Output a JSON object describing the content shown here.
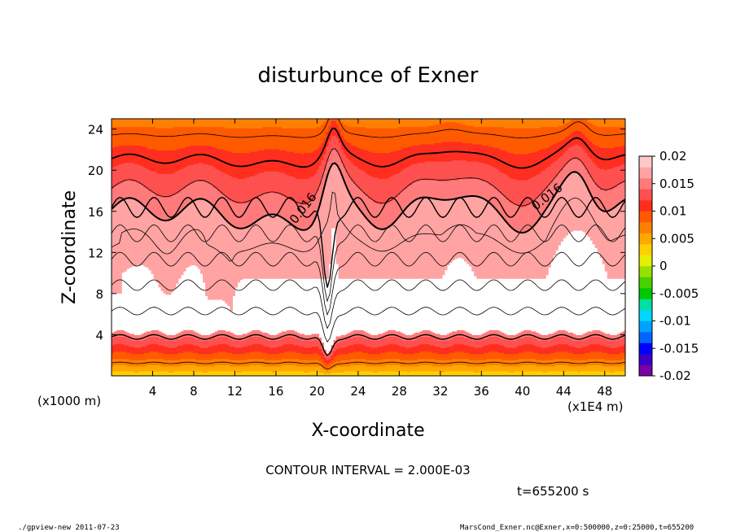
{
  "chart_data": {
    "type": "heatmap",
    "title": "disturbunce of Exner",
    "xlabel": "X-coordinate",
    "ylabel": "Z-coordinate",
    "x_unit_left": "(x1000 m)",
    "x_unit_right": "(x1E4 m)",
    "x_ticks": [
      "4",
      "8",
      "12",
      "16",
      "20",
      "24",
      "28",
      "32",
      "36",
      "40",
      "44",
      "48"
    ],
    "y_ticks": [
      "4",
      "8",
      "12",
      "16",
      "20",
      "24"
    ],
    "xlim": [
      0,
      50
    ],
    "ylim": [
      0,
      25
    ],
    "contour_interval_text": "CONTOUR INTERVAL = 2.000E-03",
    "time_text": "t=655200 s",
    "contour_labels": [
      "0.016",
      "0.016"
    ],
    "colorbar": {
      "range": [
        -0.02,
        0.02
      ],
      "ticks": [
        "0.02",
        "0.015",
        "0.01",
        "0.005",
        "0",
        "-0.005",
        "-0.01",
        "-0.015",
        "-0.02"
      ],
      "colors": [
        "#7a00a8",
        "#3a00c8",
        "#0000ff",
        "#0066ff",
        "#00a2ff",
        "#00d7ff",
        "#00e0a0",
        "#00c800",
        "#46d200",
        "#96e100",
        "#e6ef00",
        "#ffd000",
        "#ffa800",
        "#ff8000",
        "#ff5a00",
        "#ff2e1f",
        "#ff5050",
        "#ff7a7a",
        "#ffa3a3",
        "#ffc8c8"
      ]
    }
  },
  "footer": {
    "left": "./gpview-new   2011-07-23",
    "right": "MarsCond_Exner.nc@Exner,x=0:500000,z=0:25000,t=655200"
  }
}
